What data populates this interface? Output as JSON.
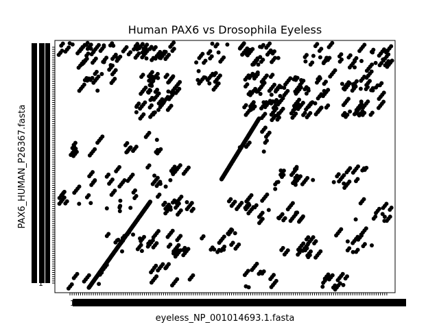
{
  "chart_data": {
    "type": "scatter",
    "title": "Human PAX6 vs Drosophila Eyeless",
    "xlabel": "eyeless_NP_001014693.1.fasta",
    "ylabel": "PAX6_HUMAN_P26367.fasta",
    "x_tick_first": "1",
    "y_tick_first": "1",
    "grid": false,
    "marker_color": "#000000",
    "diagonals": [
      {
        "x_start": 0.1,
        "y_start": 0.02,
        "x_end": 0.28,
        "y_end": 0.36
      },
      {
        "x_start": 0.49,
        "y_start": 0.45,
        "x_end": 0.6,
        "y_end": 0.69
      }
    ],
    "clusters": [
      {
        "x": 0.06,
        "y": 0.95,
        "n": 10
      },
      {
        "x": 0.11,
        "y": 0.92,
        "n": 10
      },
      {
        "x": 0.2,
        "y": 0.94,
        "n": 14
      },
      {
        "x": 0.3,
        "y": 0.95,
        "n": 16
      },
      {
        "x": 0.45,
        "y": 0.95,
        "n": 10
      },
      {
        "x": 0.6,
        "y": 0.94,
        "n": 18
      },
      {
        "x": 0.78,
        "y": 0.94,
        "n": 14
      },
      {
        "x": 0.92,
        "y": 0.93,
        "n": 16
      },
      {
        "x": 0.12,
        "y": 0.83,
        "n": 10
      },
      {
        "x": 0.3,
        "y": 0.82,
        "n": 18
      },
      {
        "x": 0.42,
        "y": 0.84,
        "n": 10
      },
      {
        "x": 0.62,
        "y": 0.82,
        "n": 22
      },
      {
        "x": 0.76,
        "y": 0.82,
        "n": 16
      },
      {
        "x": 0.9,
        "y": 0.84,
        "n": 18
      },
      {
        "x": 0.29,
        "y": 0.73,
        "n": 16
      },
      {
        "x": 0.61,
        "y": 0.72,
        "n": 22
      },
      {
        "x": 0.75,
        "y": 0.73,
        "n": 14
      },
      {
        "x": 0.9,
        "y": 0.73,
        "n": 16
      },
      {
        "x": 0.09,
        "y": 0.57,
        "n": 6
      },
      {
        "x": 0.25,
        "y": 0.58,
        "n": 8
      },
      {
        "x": 0.58,
        "y": 0.6,
        "n": 6
      },
      {
        "x": 0.16,
        "y": 0.45,
        "n": 8
      },
      {
        "x": 0.32,
        "y": 0.46,
        "n": 12
      },
      {
        "x": 0.7,
        "y": 0.45,
        "n": 14
      },
      {
        "x": 0.88,
        "y": 0.45,
        "n": 10
      },
      {
        "x": 0.06,
        "y": 0.38,
        "n": 8
      },
      {
        "x": 0.2,
        "y": 0.36,
        "n": 10
      },
      {
        "x": 0.36,
        "y": 0.34,
        "n": 12
      },
      {
        "x": 0.55,
        "y": 0.33,
        "n": 10
      },
      {
        "x": 0.66,
        "y": 0.3,
        "n": 12
      },
      {
        "x": 0.94,
        "y": 0.32,
        "n": 10
      },
      {
        "x": 0.2,
        "y": 0.2,
        "n": 12
      },
      {
        "x": 0.32,
        "y": 0.18,
        "n": 12
      },
      {
        "x": 0.48,
        "y": 0.2,
        "n": 12
      },
      {
        "x": 0.72,
        "y": 0.18,
        "n": 12
      },
      {
        "x": 0.88,
        "y": 0.2,
        "n": 10
      },
      {
        "x": 0.1,
        "y": 0.05,
        "n": 6
      },
      {
        "x": 0.34,
        "y": 0.06,
        "n": 8
      },
      {
        "x": 0.6,
        "y": 0.05,
        "n": 8
      },
      {
        "x": 0.82,
        "y": 0.05,
        "n": 10
      }
    ]
  }
}
